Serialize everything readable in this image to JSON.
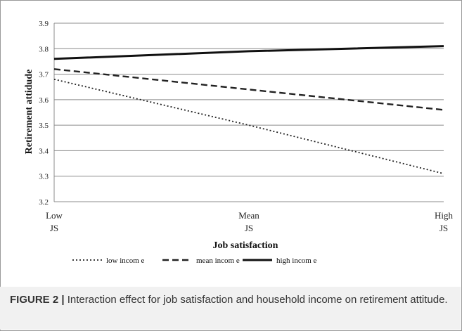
{
  "chart_data": {
    "type": "line",
    "categories": [
      "Low JS",
      "Mean JS",
      "High JS"
    ],
    "x_tick_labels": [
      [
        "Low",
        "JS"
      ],
      [
        "Mean",
        "JS"
      ],
      [
        "High",
        "JS"
      ]
    ],
    "xlabel": "Job satisfaction",
    "ylabel": "Retirement attidude",
    "ylim": [
      3.2,
      3.9
    ],
    "yticks": [
      "3.2",
      "3.3",
      "3.4",
      "3.5",
      "3.6",
      "3.7",
      "3.8",
      "3.9"
    ],
    "grid": true,
    "legend_position": "bottom-left",
    "series": [
      {
        "name": "low incom e",
        "values": [
          3.68,
          3.5,
          3.31
        ],
        "style": "dotted",
        "color": "#222222"
      },
      {
        "name": "mean incom e",
        "values": [
          3.72,
          3.64,
          3.56
        ],
        "style": "dashed",
        "color": "#222222"
      },
      {
        "name": "high incom e",
        "values": [
          3.76,
          3.79,
          3.81
        ],
        "style": "solid",
        "color": "#111111"
      }
    ]
  },
  "caption": {
    "label": "FIGURE 2 |",
    "text": " Interaction effect for job satisfaction and household income on retirement attitude."
  }
}
